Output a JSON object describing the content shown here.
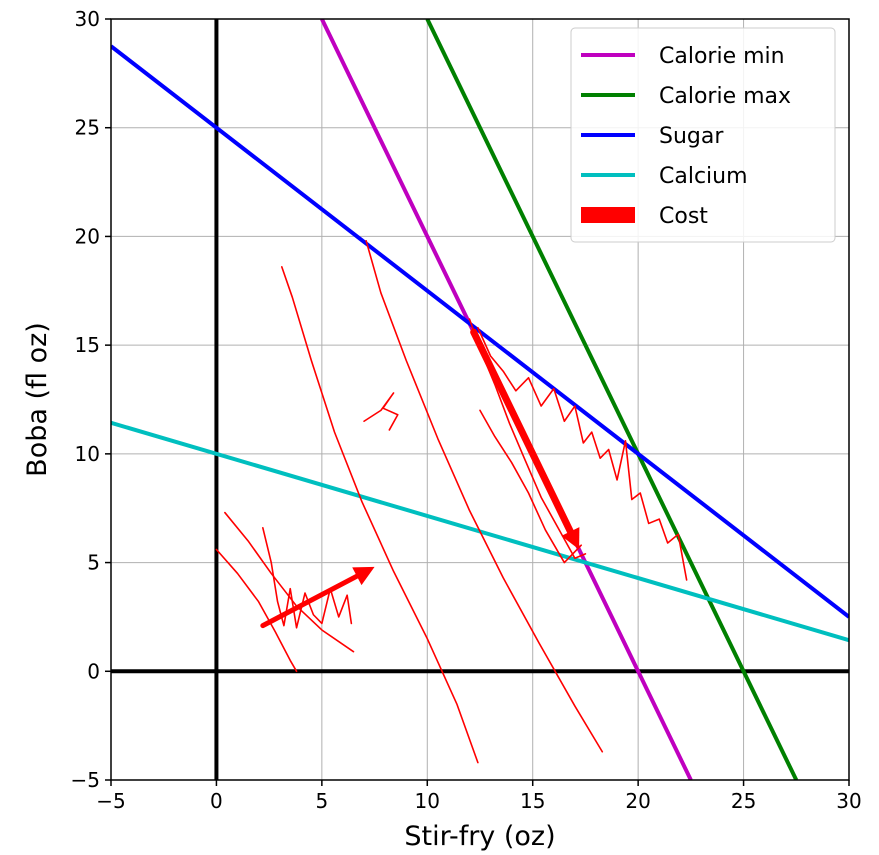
{
  "chart_data": {
    "type": "line",
    "title": "",
    "xlabel": "Stir-fry (oz)",
    "ylabel": "Boba (fl oz)",
    "xlim": [
      -5,
      30
    ],
    "ylim": [
      -5,
      30
    ],
    "xticks": [
      -5,
      0,
      5,
      10,
      15,
      20,
      25,
      30
    ],
    "yticks": [
      -5,
      0,
      5,
      10,
      15,
      20,
      25,
      30
    ],
    "xtick_labels": [
      "−5",
      "0",
      "5",
      "10",
      "15",
      "20",
      "25",
      "30"
    ],
    "ytick_labels": [
      "−5",
      "0",
      "5",
      "10",
      "15",
      "20",
      "25",
      "30"
    ],
    "grid": true,
    "legend_position": "top-right",
    "axes_lines": {
      "x": 0,
      "y": 0,
      "color": "#000000"
    },
    "series": [
      {
        "name": "Calorie min",
        "color": "#bf00bf",
        "x": [
          5,
          22.5
        ],
        "y": [
          30,
          -5
        ]
      },
      {
        "name": "Calorie max",
        "color": "#008000",
        "x": [
          10,
          27.5
        ],
        "y": [
          30,
          -5
        ]
      },
      {
        "name": "Sugar",
        "color": "#0000ff",
        "x": [
          -5,
          30
        ],
        "y": [
          28.75,
          2.5
        ]
      },
      {
        "name": "Calcium",
        "color": "#00bfbf",
        "x": [
          -5,
          30
        ],
        "y": [
          11.43,
          1.43
        ]
      },
      {
        "name": "Cost",
        "color": "#ff0000",
        "legend_marker": "patch"
      }
    ],
    "annotations": {
      "color": "#ff0000",
      "handwritten_strokes": [
        [
          [
            0,
            5.6
          ],
          [
            1.0,
            4.5
          ],
          [
            2.0,
            3.2
          ],
          [
            2.8,
            1.8
          ],
          [
            3.5,
            0.5
          ],
          [
            3.8,
            0
          ]
        ],
        [
          [
            0.4,
            7.3
          ],
          [
            1.5,
            6.0
          ],
          [
            2.6,
            4.5
          ],
          [
            3.8,
            3.0
          ],
          [
            5.0,
            1.9
          ],
          [
            6.5,
            0.9
          ]
        ],
        [
          [
            2.2,
            6.6
          ],
          [
            2.6,
            5.0
          ],
          [
            2.9,
            3.2
          ],
          [
            3.2,
            2.1
          ],
          [
            3.5,
            3.8
          ],
          [
            3.8,
            2.0
          ],
          [
            4.2,
            3.6
          ],
          [
            4.6,
            2.6
          ],
          [
            5.0,
            2.2
          ],
          [
            5.4,
            3.8
          ],
          [
            5.8,
            2.5
          ],
          [
            6.2,
            3.5
          ],
          [
            6.4,
            2.2
          ]
        ],
        [
          [
            3.1,
            18.6
          ],
          [
            3.6,
            17.2
          ],
          [
            4.5,
            14.3
          ],
          [
            5.6,
            11.0
          ],
          [
            6.9,
            7.8
          ],
          [
            8.4,
            4.6
          ],
          [
            10.0,
            1.5
          ],
          [
            11.4,
            -1.5
          ],
          [
            12.4,
            -4.2
          ]
        ],
        [
          [
            7.1,
            19.8
          ],
          [
            7.8,
            17.4
          ],
          [
            9.0,
            14.3
          ],
          [
            10.5,
            10.7
          ],
          [
            12.0,
            7.4
          ],
          [
            13.6,
            4.3
          ],
          [
            15.3,
            1.3
          ],
          [
            17.0,
            -1.6
          ],
          [
            18.3,
            -3.7
          ]
        ],
        [
          [
            7.0,
            11.5
          ],
          [
            7.8,
            12.0
          ],
          [
            8.4,
            12.8
          ],
          [
            7.9,
            12.1
          ],
          [
            8.6,
            11.8
          ],
          [
            8.2,
            11.1
          ]
        ],
        [
          [
            12.0,
            16.2
          ],
          [
            12.6,
            14.6
          ],
          [
            13.2,
            13.2
          ],
          [
            13.9,
            11.4
          ],
          [
            14.6,
            9.8
          ],
          [
            15.4,
            8.0
          ],
          [
            16.2,
            6.6
          ],
          [
            17.0,
            5.2
          ],
          [
            17.5,
            5.4
          ]
        ],
        [
          [
            12.4,
            15.8
          ],
          [
            13.0,
            14.5
          ],
          [
            13.6,
            13.8
          ],
          [
            14.2,
            12.9
          ],
          [
            14.8,
            13.5
          ],
          [
            15.4,
            12.2
          ],
          [
            16.0,
            13.0
          ],
          [
            16.5,
            11.5
          ],
          [
            17.0,
            12.2
          ],
          [
            17.4,
            10.5
          ],
          [
            17.8,
            11.0
          ],
          [
            18.2,
            9.8
          ],
          [
            18.6,
            10.2
          ],
          [
            19.0,
            8.8
          ],
          [
            19.4,
            10.6
          ],
          [
            19.7,
            7.9
          ],
          [
            20.1,
            8.2
          ],
          [
            20.5,
            6.8
          ],
          [
            21.0,
            7.0
          ],
          [
            21.4,
            5.9
          ],
          [
            21.9,
            6.3
          ],
          [
            22.3,
            4.2
          ]
        ],
        [
          [
            12.5,
            12.0
          ],
          [
            13.2,
            10.8
          ],
          [
            14.0,
            9.6
          ],
          [
            14.8,
            8.2
          ],
          [
            15.6,
            6.5
          ],
          [
            16.5,
            5.0
          ],
          [
            17.3,
            5.8
          ]
        ]
      ],
      "arrows": [
        {
          "from": [
            2.2,
            2.1
          ],
          "to": [
            7.5,
            4.8
          ],
          "width": 5
        },
        {
          "from": [
            12.2,
            15.6
          ],
          "to": [
            17.2,
            5.6
          ],
          "width": 7
        }
      ]
    }
  }
}
